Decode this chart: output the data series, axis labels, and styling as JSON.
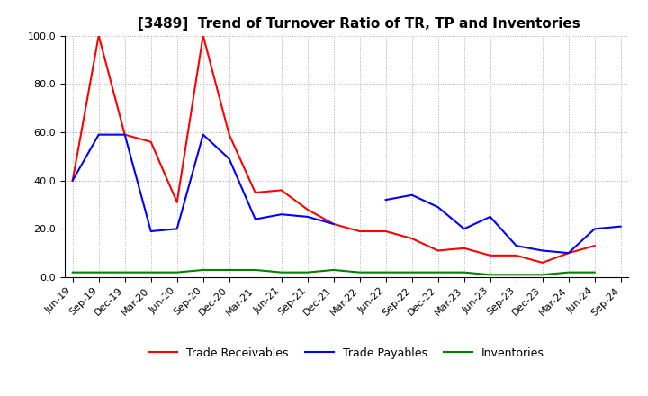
{
  "title": "[3489]  Trend of Turnover Ratio of TR, TP and Inventories",
  "xlabels": [
    "Jun-19",
    "Sep-19",
    "Dec-19",
    "Mar-20",
    "Jun-20",
    "Sep-20",
    "Dec-20",
    "Mar-21",
    "Jun-21",
    "Sep-21",
    "Dec-21",
    "Mar-22",
    "Jun-22",
    "Sep-22",
    "Dec-22",
    "Mar-23",
    "Jun-23",
    "Sep-23",
    "Dec-23",
    "Mar-24",
    "Jun-24",
    "Sep-24"
  ],
  "trade_receivables": [
    40.0,
    100.0,
    59.0,
    56.0,
    31.0,
    100.0,
    59.0,
    35.0,
    36.0,
    28.0,
    22.0,
    19.0,
    19.0,
    16.0,
    11.0,
    12.0,
    9.0,
    9.0,
    6.0,
    10.0,
    13.0,
    null
  ],
  "trade_payables": [
    40.0,
    59.0,
    59.0,
    19.0,
    20.0,
    59.0,
    49.0,
    24.0,
    26.0,
    25.0,
    22.0,
    null,
    32.0,
    34.0,
    29.0,
    20.0,
    25.0,
    13.0,
    11.0,
    10.0,
    20.0,
    21.0
  ],
  "inventories": [
    2.0,
    2.0,
    2.0,
    2.0,
    2.0,
    3.0,
    3.0,
    3.0,
    2.0,
    2.0,
    3.0,
    2.0,
    2.0,
    2.0,
    2.0,
    2.0,
    1.0,
    1.0,
    1.0,
    2.0,
    2.0,
    null
  ],
  "ylim": [
    0.0,
    100.0
  ],
  "yticks": [
    0.0,
    20.0,
    40.0,
    60.0,
    80.0,
    100.0
  ],
  "color_tr": "#FF0000",
  "color_tp": "#0000FF",
  "color_inv": "#008000",
  "legend_tr": "Trade Receivables",
  "legend_tp": "Trade Payables",
  "legend_inv": "Inventories",
  "bg_color": "#FFFFFF",
  "grid_color": "#AAAAAA",
  "title_fontsize": 11,
  "tick_fontsize": 8,
  "legend_fontsize": 9,
  "linewidth": 1.5
}
